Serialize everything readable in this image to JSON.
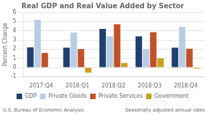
{
  "chart_data": {
    "type": "bar",
    "title": "Real GDP and Real Value Added by Sector",
    "ylabel": "Percent Change",
    "categories": [
      "2017:Q4",
      "2018:Q1",
      "2018:Q2",
      "2018:Q3",
      "2018:Q4"
    ],
    "series": [
      {
        "name": "GDP",
        "color": "#1f3f6e",
        "values": [
          2.2,
          2.15,
          4.2,
          3.4,
          2.15
        ]
      },
      {
        "name": "Private Goods",
        "color": "#b8cce4",
        "values": [
          5.2,
          3.8,
          3.4,
          2.0,
          4.4
        ]
      },
      {
        "name": "Private Services",
        "color": "#c0522a",
        "values": [
          1.6,
          2.0,
          4.7,
          3.85,
          2.05
        ]
      },
      {
        "name": "Government",
        "color": "#c8a020",
        "values": [
          0.0,
          -0.55,
          0.5,
          1.0,
          -0.1
        ]
      }
    ],
    "ylim": [
      -1,
      6
    ],
    "yticks": [
      -1,
      0,
      1,
      2,
      3,
      4,
      5,
      6
    ],
    "grid": true,
    "legend": "bottom",
    "annotations": [
      "U.S. Bureau of Economic Analysis",
      "Seasonally adjusted annual rates"
    ]
  }
}
